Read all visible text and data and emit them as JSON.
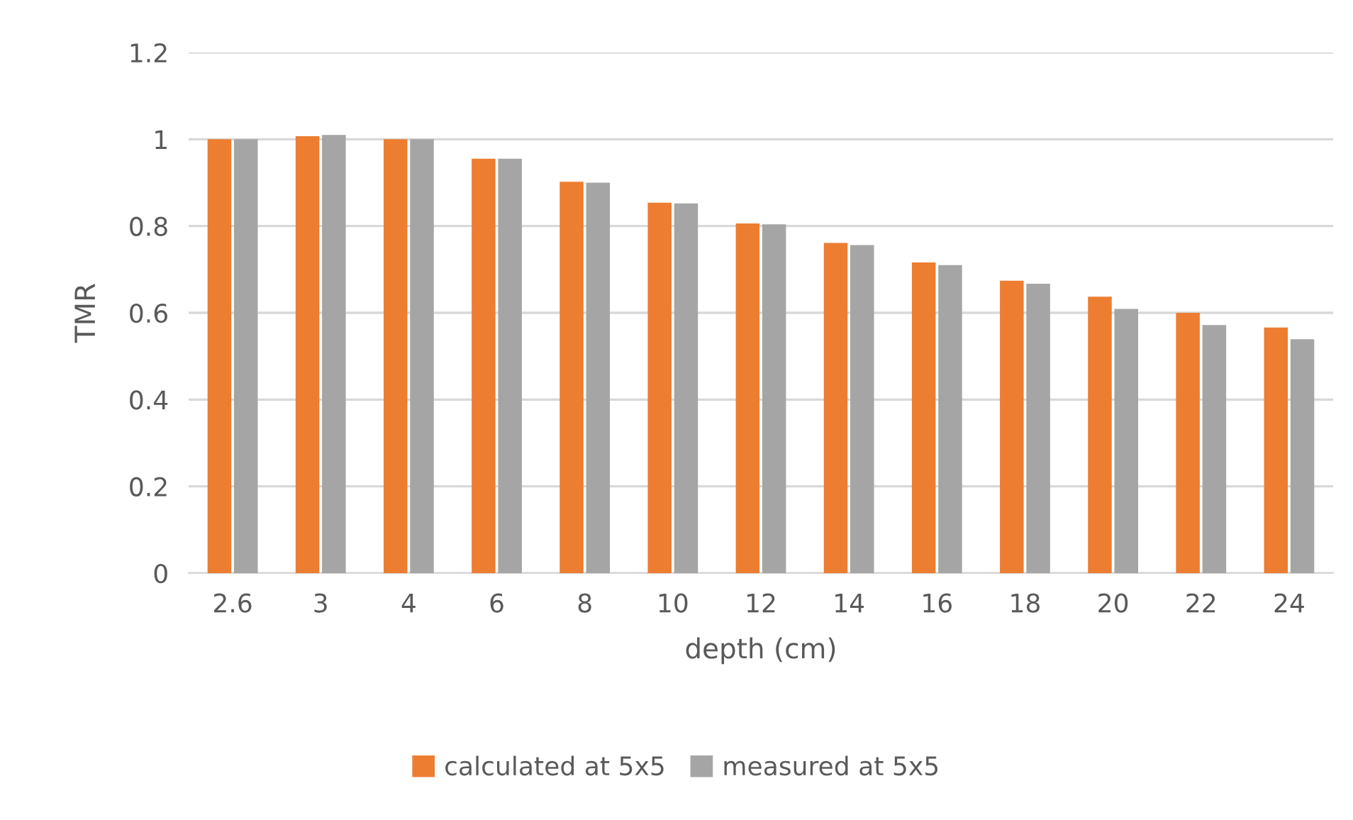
{
  "chart_data": {
    "type": "bar",
    "xlabel": "depth (cm)",
    "ylabel": "TMR",
    "categories": [
      "2.6",
      "3",
      "4",
      "6",
      "8",
      "10",
      "12",
      "14",
      "16",
      "18",
      "20",
      "22",
      "24"
    ],
    "series": [
      {
        "name": "calculated at 5x5",
        "color": "#ed7d31",
        "values": [
          1.0,
          1.007,
          1.0,
          0.955,
          0.902,
          0.854,
          0.806,
          0.761,
          0.716,
          0.674,
          0.637,
          0.6,
          0.566
        ]
      },
      {
        "name": "measured at 5x5",
        "color": "#a5a5a5",
        "values": [
          1.0,
          1.01,
          1.0,
          0.955,
          0.9,
          0.852,
          0.804,
          0.756,
          0.71,
          0.667,
          0.609,
          0.572,
          0.539
        ]
      }
    ],
    "ylim": [
      0,
      1.2
    ],
    "yticks": [
      0,
      0.2,
      0.4,
      0.6,
      0.8,
      1,
      1.2
    ],
    "grid": "y",
    "legend": "bottom"
  }
}
